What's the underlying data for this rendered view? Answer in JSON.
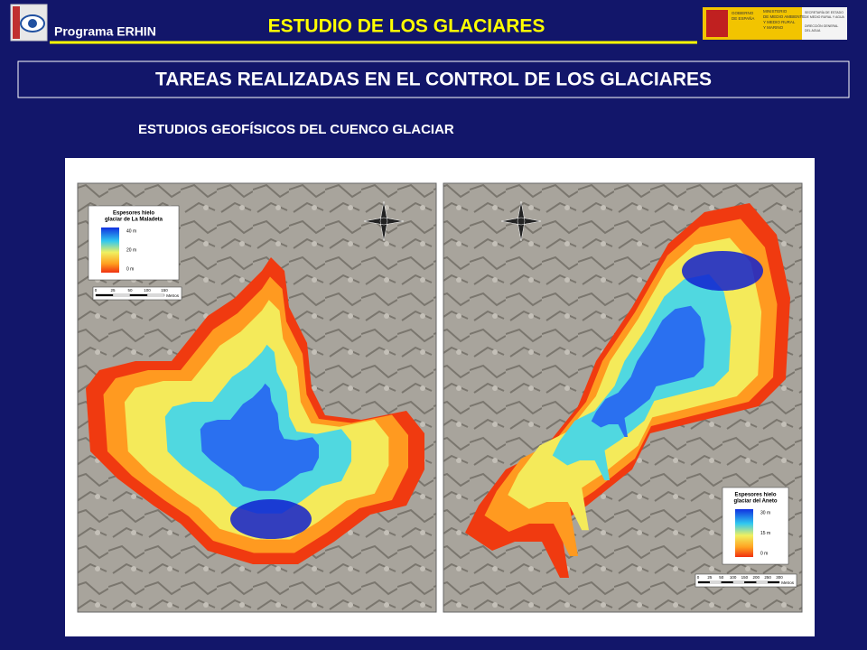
{
  "header": {
    "program": "Programa ERHIN",
    "title": "ESTUDIO DE LOS GLACIARES",
    "ministry": [
      "GOBIERNO",
      "DE ESPAÑA",
      "MINISTERIO",
      "DE MEDIO AMBIENTE",
      "Y MEDIO RURAL",
      "Y MARINO"
    ],
    "secretariat": [
      "SECRETARÍA DE ESTADO",
      "DE MEDIO RURAL Y AGUA",
      "DIRECCIÓN GENERAL",
      "DEL AGUA"
    ]
  },
  "slide": {
    "title": "TAREAS REALIZADAS EN EL CONTROL DE LOS GLACIARES",
    "subtitle": "ESTUDIOS GEOFÍSICOS DEL CUENCO GLACIAR"
  },
  "maps": [
    {
      "legend_title": [
        "Espesores hielo",
        "glaciar de La Maladeta"
      ],
      "legend_labels": [
        "40 m",
        "20 m",
        "0 m"
      ],
      "scale_labels": [
        "0",
        "25",
        "50",
        "100",
        "150"
      ],
      "scale_unit": "Metros"
    },
    {
      "legend_title": [
        "Espesores hielo",
        "glaciar del Aneto"
      ],
      "legend_labels": [
        "30 m",
        "15 m",
        "0 m"
      ],
      "scale_labels": [
        "0",
        "25",
        "50",
        "100",
        "150",
        "200",
        "250",
        "300"
      ],
      "scale_unit": "Metros"
    }
  ]
}
